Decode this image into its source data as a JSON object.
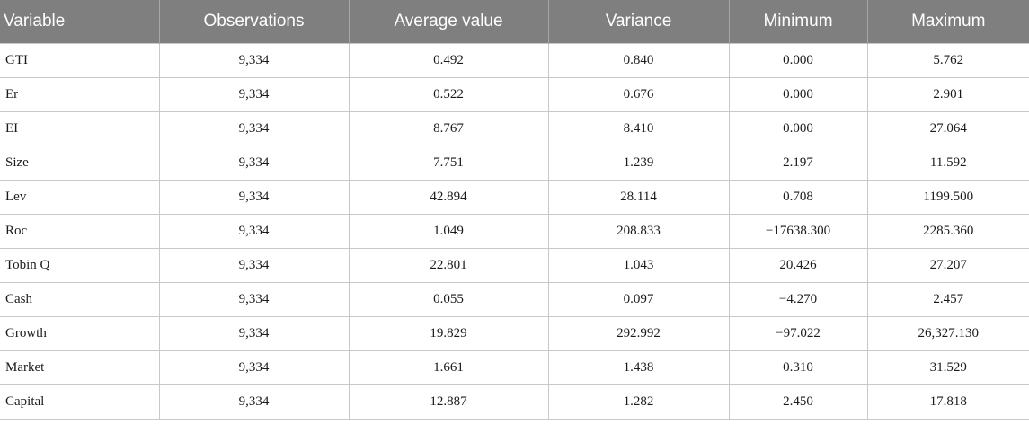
{
  "table": {
    "headers": [
      "Variable",
      "Observations",
      "Average value",
      "Variance",
      "Minimum",
      "Maximum"
    ],
    "rows": [
      [
        "GTI",
        "9,334",
        "0.492",
        "0.840",
        "0.000",
        "5.762"
      ],
      [
        "Er",
        "9,334",
        "0.522",
        "0.676",
        "0.000",
        "2.901"
      ],
      [
        "EI",
        "9,334",
        "8.767",
        "8.410",
        "0.000",
        "27.064"
      ],
      [
        "Size",
        "9,334",
        "7.751",
        "1.239",
        "2.197",
        "11.592"
      ],
      [
        "Lev",
        "9,334",
        "42.894",
        "28.114",
        "0.708",
        "1199.500"
      ],
      [
        "Roc",
        "9,334",
        "1.049",
        "208.833",
        "−17638.300",
        "2285.360"
      ],
      [
        "Tobin Q",
        "9,334",
        "22.801",
        "1.043",
        "20.426",
        "27.207"
      ],
      [
        "Cash",
        "9,334",
        "0.055",
        "0.097",
        "−4.270",
        "2.457"
      ],
      [
        "Growth",
        "9,334",
        "19.829",
        "292.992",
        "−97.022",
        "26,327.130"
      ],
      [
        "Market",
        "9,334",
        "1.661",
        "1.438",
        "0.310",
        "31.529"
      ],
      [
        "Capital",
        "9,334",
        "12.887",
        "1.282",
        "2.450",
        "17.818"
      ]
    ]
  }
}
